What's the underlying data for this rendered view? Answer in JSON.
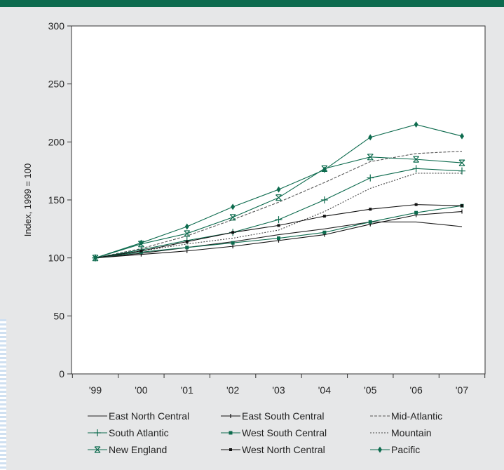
{
  "chart_data": {
    "type": "line",
    "title": "",
    "xlabel": "",
    "ylabel": "Index, 1999 = 100",
    "ylim": [
      0,
      300
    ],
    "yticks": [
      "0",
      "50",
      "100",
      "150",
      "200",
      "250",
      "300"
    ],
    "categories": [
      "'99",
      "'00",
      "'01",
      "'02",
      "'03",
      "'04",
      "'05",
      "'06",
      "'07"
    ],
    "grid": false,
    "legend_position": "bottom",
    "series": [
      {
        "name": "East North Central",
        "color": "#222222",
        "dash": "",
        "marker": "none",
        "values": [
          100,
          104,
          109,
          114,
          120,
          125,
          131,
          131,
          127
        ]
      },
      {
        "name": "East South Central",
        "color": "#111111",
        "dash": "",
        "marker": "tick",
        "values": [
          100,
          103,
          106,
          110,
          115,
          120,
          129,
          137,
          140
        ]
      },
      {
        "name": "Mid-Atlantic",
        "color": "#555555",
        "dash": "4,2",
        "marker": "none",
        "values": [
          100,
          108,
          119,
          133,
          148,
          165,
          183,
          190,
          192
        ]
      },
      {
        "name": "South Atlantic",
        "color": "#0d6b4e",
        "dash": "",
        "marker": "plus",
        "values": [
          100,
          107,
          115,
          122,
          133,
          150,
          169,
          177,
          175
        ]
      },
      {
        "name": "West South Central",
        "color": "#0d6b4e",
        "dash": "",
        "marker": "square",
        "values": [
          100,
          105,
          109,
          113,
          117,
          122,
          131,
          139,
          145
        ]
      },
      {
        "name": "Mountain",
        "color": "#444444",
        "dash": "2,2",
        "marker": "none",
        "values": [
          100,
          106,
          112,
          117,
          124,
          140,
          160,
          173,
          173
        ]
      },
      {
        "name": "New England",
        "color": "#0d6b4e",
        "dash": "",
        "marker": "x",
        "values": [
          100,
          112,
          121,
          135,
          152,
          177,
          187,
          185,
          182
        ]
      },
      {
        "name": "West North Central",
        "color": "#111111",
        "dash": "",
        "marker": "dot",
        "values": [
          100,
          106,
          114,
          122,
          128,
          136,
          142,
          146,
          145
        ]
      },
      {
        "name": "Pacific",
        "color": "#0d6b4e",
        "dash": "",
        "marker": "diamond",
        "values": [
          100,
          113,
          127,
          144,
          159,
          176,
          204,
          215,
          205
        ]
      }
    ]
  }
}
